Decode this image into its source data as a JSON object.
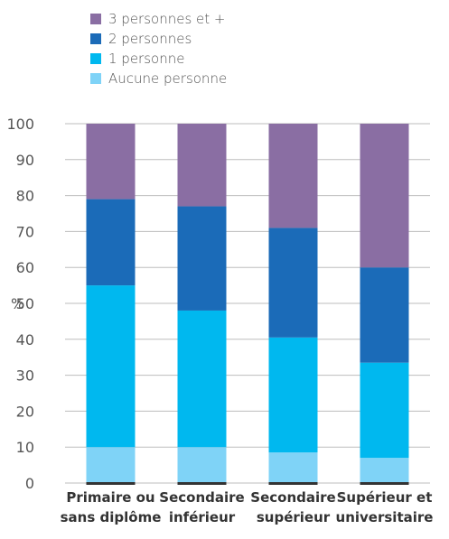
{
  "chart_data": {
    "type": "bar",
    "stacked": true,
    "categories": [
      [
        "Primaire ou",
        "sans diplôme"
      ],
      [
        "Secondaire",
        "inférieur"
      ],
      [
        "Secondaire",
        "supérieur"
      ],
      [
        "Supérieur et",
        "universitaire"
      ]
    ],
    "series": [
      {
        "name": "Aucune personne",
        "color": "#7fd3f7",
        "values": [
          10,
          10,
          8.5,
          7
        ]
      },
      {
        "name": "1 personne",
        "color": "#00b8ef",
        "values": [
          45,
          38,
          32,
          26.5
        ]
      },
      {
        "name": "2 personnes",
        "color": "#1b6bb8",
        "values": [
          24,
          29,
          30.5,
          26.5
        ]
      },
      {
        "name": "3 personnes et +",
        "color": "#8a6ea3",
        "values": [
          21,
          23,
          29,
          40
        ]
      }
    ],
    "legend_order": [
      "3 personnes et +",
      "2 personnes",
      "1 personne",
      "Aucune personne"
    ],
    "ylabel": "%",
    "ylim": [
      0,
      100
    ],
    "yticks": [
      "0",
      "10",
      "20",
      "30",
      "40",
      "50",
      "60",
      "70",
      "80",
      "90",
      "100"
    ],
    "grid": true,
    "legend_position": "top-left"
  }
}
